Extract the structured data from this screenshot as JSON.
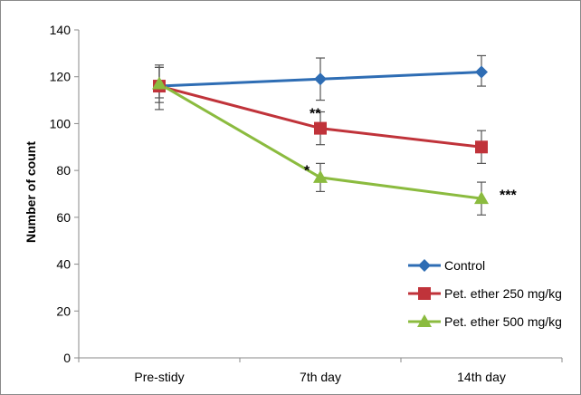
{
  "chart_data": {
    "type": "line",
    "title": "",
    "xlabel": "",
    "ylabel": "Number of count",
    "categories": [
      "Pre-stidy",
      "7th day",
      "14th day"
    ],
    "ylim": [
      0,
      140
    ],
    "yticks": [
      0,
      20,
      40,
      60,
      80,
      100,
      120,
      140
    ],
    "grid": false,
    "legend_position": "bottom-right",
    "series": [
      {
        "name": "Control",
        "color": "#2e6db4",
        "marker": "diamond",
        "values": [
          116,
          119,
          122
        ],
        "error_low": [
          111,
          110,
          116
        ],
        "error_high": [
          124,
          128,
          129
        ]
      },
      {
        "name": "Pet. ether 250 mg/kg",
        "color": "#c0333a",
        "marker": "square",
        "values": [
          116,
          98,
          90
        ],
        "error_low": [
          109,
          91,
          83
        ],
        "error_high": [
          125,
          105,
          97
        ]
      },
      {
        "name": "Pet. ether 500 mg/kg",
        "color": "#8bbb3f",
        "marker": "triangle",
        "values": [
          117,
          77,
          68
        ],
        "error_low": [
          106,
          71,
          61
        ],
        "error_high": [
          124,
          83,
          75
        ]
      }
    ],
    "annotations": [
      {
        "text": "**",
        "category": "7th day",
        "y": 100
      },
      {
        "text": "*",
        "category": "7th day",
        "y": 78
      },
      {
        "text": "***",
        "category": "14th day",
        "y": 69
      }
    ]
  }
}
